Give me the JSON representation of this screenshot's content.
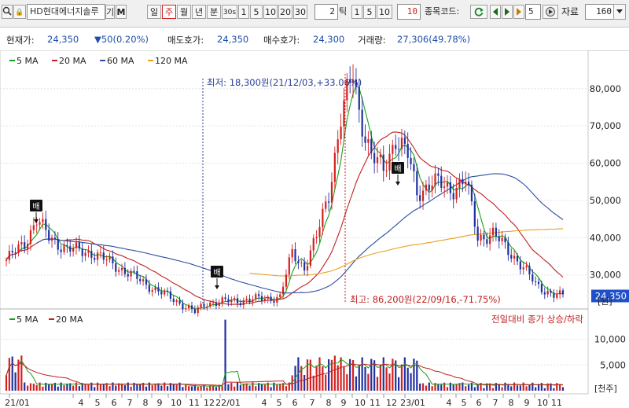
{
  "toolbar": {
    "search_icon": "magnifier-icon",
    "lock_label": "🔒",
    "stock_name": "HD현대에너지솔루",
    "menu_label": "기",
    "m_label": "M",
    "period_day": "일",
    "period_week": "주",
    "period_month": "월",
    "period_year": "년",
    "period_minute": "분",
    "minute_30": "30s",
    "n1": "1",
    "n5": "5",
    "n10": "10",
    "n20": "20",
    "n30": "30",
    "tick_value": "2",
    "tick_label": "틱",
    "t1": "1",
    "t5": "5",
    "t10": "10",
    "t10b": "10",
    "code_label": "종목코드:",
    "step_value": "5",
    "data_label": "자료",
    "data_count": "160"
  },
  "info": {
    "price_label": "현재가:",
    "price_value": "24,350",
    "change_value": "▼50(0.20%)",
    "ask_label": "매도호가:",
    "ask_value": "24,350",
    "bid_label": "매수호가:",
    "bid_value": "24,300",
    "volume_label": "거래량:",
    "volume_value": "27,306(49.78%)"
  },
  "chart_data": {
    "type": "line",
    "legend": [
      {
        "name": "5 MA",
        "color": "#1aa01a"
      },
      {
        "name": "20 MA",
        "color": "#c02020"
      },
      {
        "name": "60 MA",
        "color": "#2a4ea0"
      },
      {
        "name": "120 MA",
        "color": "#e8a020"
      }
    ],
    "y_ticks": [
      "80,000",
      "70,000",
      "60,000",
      "50,000",
      "40,000",
      "30,000"
    ],
    "y_tick_values": [
      80000,
      70000,
      60000,
      50000,
      40000,
      30000
    ],
    "ylim": [
      21500,
      86500
    ],
    "current_price": "24,350",
    "y_unit": "[원]",
    "annotations": {
      "low": "최저: 18,300원(21/12/03,+33.06%)",
      "high": "최고: 86,200원(22/09/16,-71.75%)",
      "marks": [
        "배",
        "배",
        "배"
      ]
    },
    "x_labels": [
      "21/01",
      "4",
      "5",
      "6",
      "7",
      "8",
      "9",
      "10",
      "11",
      "12",
      "22/01",
      "4",
      "5",
      "6",
      "7",
      "8",
      "9",
      "10",
      "11",
      "12",
      "23/01",
      "4",
      "5",
      "6",
      "7",
      "8",
      "9",
      "10",
      "11"
    ],
    "volume": {
      "legend": [
        {
          "name": "5 MA",
          "color": "#1aa01a"
        },
        {
          "name": "20 MA",
          "color": "#c02020"
        }
      ],
      "note": "전일대비 종가 상승/하락",
      "y_ticks": [
        "10,000",
        "5,000"
      ],
      "y_tick_values": [
        10000,
        5000
      ],
      "ylim": [
        0,
        14200
      ],
      "unit": "[천주]"
    },
    "colors": {
      "up": "#d42020",
      "down": "#2030a0",
      "price_box": "#2050c8"
    }
  }
}
